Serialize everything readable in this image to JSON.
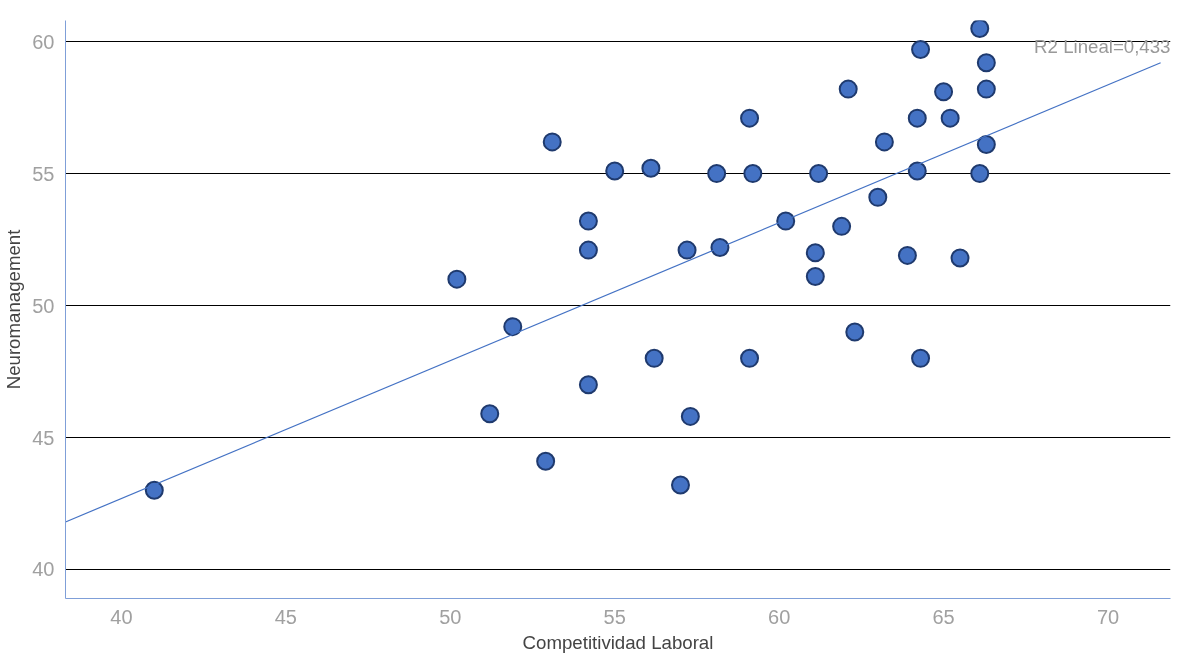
{
  "chart_data": {
    "type": "scatter",
    "xlabel": "Competitividad Laboral",
    "ylabel": "Neuromanagement",
    "xlim": [
      38.3,
      71.9
    ],
    "ylim": [
      38.9,
      60.8
    ],
    "xticks": [
      40,
      45,
      50,
      55,
      60,
      65,
      70
    ],
    "yticks": [
      40,
      45,
      50,
      55,
      60
    ],
    "grid": "y",
    "annotations": [
      "R2 Lineal=0,433"
    ],
    "series": [
      {
        "color": "#4472c4",
        "marker": "circle",
        "x": [
          41.0,
          50.2,
          51.2,
          51.9,
          52.9,
          53.1,
          54.2,
          54.2,
          54.2,
          55.0,
          56.1,
          56.2,
          57.0,
          57.2,
          57.3,
          58.1,
          58.2,
          59.1,
          59.1,
          59.2,
          60.2,
          61.1,
          61.1,
          61.2,
          61.9,
          62.1,
          62.3,
          63.0,
          63.2,
          63.9,
          64.2,
          64.2,
          64.3,
          64.3,
          65.0,
          65.2,
          65.5,
          66.1,
          66.1,
          66.3,
          66.3,
          66.3
        ],
        "values": [
          43.0,
          51.0,
          45.9,
          49.2,
          44.1,
          56.2,
          53.2,
          52.1,
          47.0,
          55.1,
          55.2,
          48.0,
          43.2,
          52.1,
          45.8,
          55.0,
          52.2,
          48.0,
          57.1,
          55.0,
          53.2,
          52.0,
          51.1,
          55.0,
          53.0,
          58.2,
          49.0,
          54.1,
          56.2,
          51.9,
          57.1,
          55.1,
          48.0,
          59.7,
          58.1,
          57.1,
          51.8,
          60.5,
          55.0,
          59.2,
          56.1,
          58.2
        ]
      },
      {
        "type": "line",
        "color": "#4472c4",
        "marker": "none",
        "x": [
          38.3,
          71.6
        ],
        "values": [
          41.8,
          59.2
        ]
      }
    ]
  }
}
